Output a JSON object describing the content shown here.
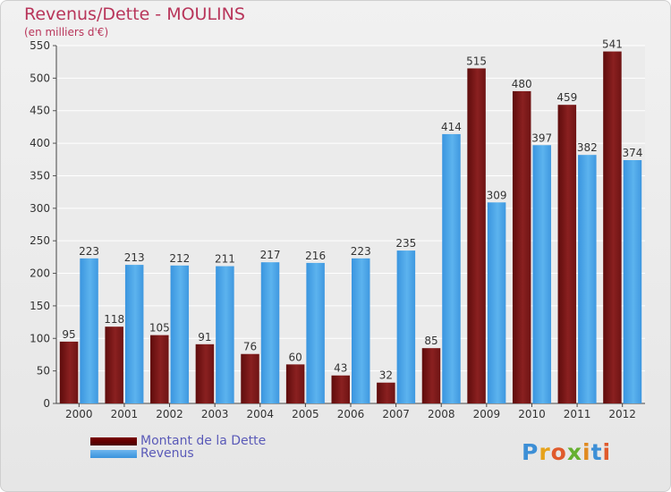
{
  "title": "Revenus/Dette - MOULINS",
  "subtitle": "(en milliers d'€)",
  "legend": {
    "debt_label": "Montant de la Dette",
    "revenue_label": "Revenus"
  },
  "logo": {
    "text": "Proxiti",
    "colors": [
      "#3d8fd6",
      "#e6a21a",
      "#e05a2c",
      "#66b030",
      "#e08a20",
      "#3d8fd6",
      "#e05a2c"
    ]
  },
  "colors": {
    "debt": "#7c1818",
    "revenue": "#4da6e8",
    "title": "#b8355a",
    "legend_text": "#5a5ab8"
  },
  "chart_data": {
    "type": "bar",
    "categories": [
      "2000",
      "2001",
      "2002",
      "2003",
      "2004",
      "2005",
      "2006",
      "2007",
      "2008",
      "2009",
      "2010",
      "2011",
      "2012"
    ],
    "series": [
      {
        "name": "Montant de la Dette",
        "values": [
          95,
          118,
          105,
          91,
          76,
          60,
          43,
          32,
          85,
          515,
          480,
          459,
          541
        ]
      },
      {
        "name": "Revenus",
        "values": [
          223,
          213,
          212,
          211,
          217,
          216,
          223,
          235,
          414,
          309,
          397,
          382,
          374
        ]
      }
    ],
    "ylim": [
      0,
      550
    ],
    "yticks": [
      0,
      50,
      100,
      150,
      200,
      250,
      300,
      350,
      400,
      450,
      500,
      550
    ],
    "grid": true
  }
}
